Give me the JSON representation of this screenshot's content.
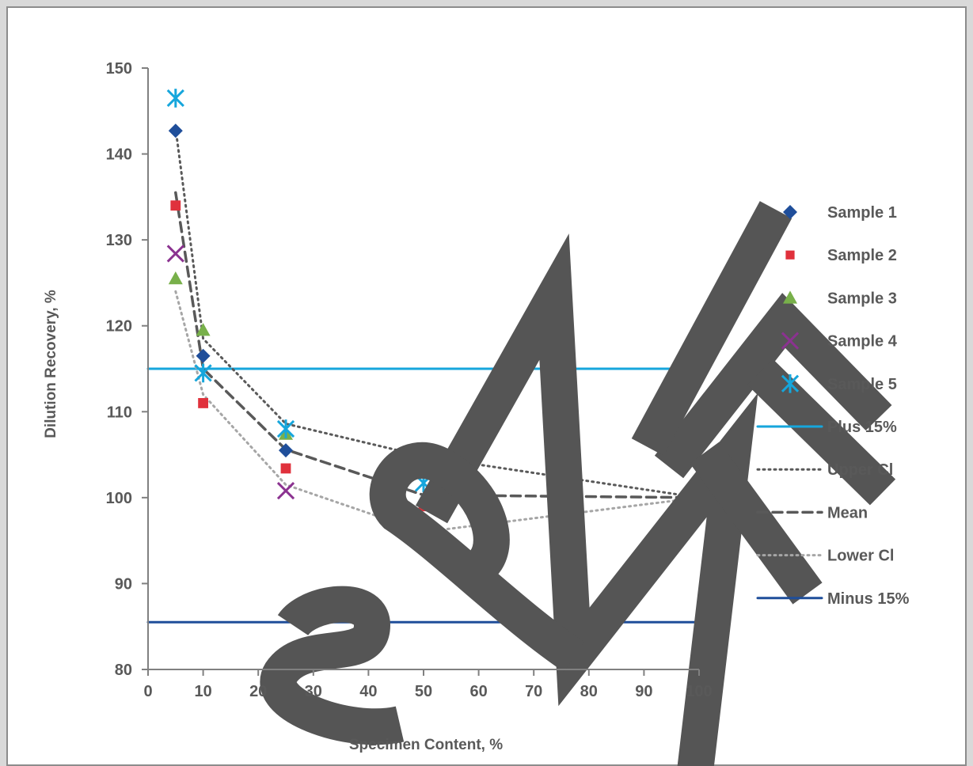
{
  "chart_data": {
    "type": "scatter",
    "xlabel": "Specimen Content, %",
    "ylabel": "Dilution Recovery, %",
    "xlim": [
      0,
      100
    ],
    "ylim": [
      80,
      150
    ],
    "xticks": [
      0,
      10,
      20,
      30,
      40,
      50,
      60,
      70,
      80,
      90,
      100
    ],
    "yticks": [
      80,
      90,
      100,
      110,
      120,
      130,
      140,
      150
    ],
    "grid": false,
    "legend_position": "right",
    "watermark": "SAMPLE",
    "series": [
      {
        "name": "Sample 1",
        "kind": "marker",
        "marker": "diamond",
        "color": "#1f4e9a",
        "x": [
          5,
          10,
          25,
          50,
          100
        ],
        "y": [
          142.7,
          116.5,
          105.5,
          104.4,
          100
        ]
      },
      {
        "name": "Sample 2",
        "kind": "marker",
        "marker": "square",
        "color": "#e0313c",
        "x": [
          5,
          10,
          25,
          50,
          100
        ],
        "y": [
          134,
          111,
          103.4,
          99,
          100
        ]
      },
      {
        "name": "Sample 3",
        "kind": "marker",
        "marker": "triangle",
        "color": "#78b04a",
        "x": [
          5,
          10,
          25,
          50,
          100
        ],
        "y": [
          125.5,
          119.5,
          107.4,
          103.2,
          100
        ]
      },
      {
        "name": "Sample 4",
        "kind": "marker",
        "marker": "x",
        "color": "#8b3290",
        "x": [
          5,
          25,
          50,
          100
        ],
        "y": [
          128.4,
          100.8,
          95.3,
          100
        ]
      },
      {
        "name": "Sample 5",
        "kind": "marker",
        "marker": "star",
        "color": "#16a6dc",
        "x": [
          5,
          10,
          25,
          50,
          100
        ],
        "y": [
          146.5,
          114.5,
          108,
          101.7,
          100
        ]
      },
      {
        "name": "Plus 15%",
        "kind": "line",
        "dash": "solid",
        "color": "#16a6dc",
        "x": [
          0,
          100
        ],
        "y": [
          115,
          115
        ]
      },
      {
        "name": "Upper Cl",
        "kind": "line",
        "dash": "dotted",
        "color": "#595959",
        "x": [
          5,
          10,
          25,
          50,
          100
        ],
        "y": [
          143,
          118.5,
          108.6,
          104.8,
          100
        ]
      },
      {
        "name": "Mean",
        "kind": "line",
        "dash": "dashed",
        "color": "#595959",
        "x": [
          5,
          10,
          25,
          50,
          100
        ],
        "y": [
          135.5,
          115,
          105.6,
          100.3,
          100
        ]
      },
      {
        "name": "Lower Cl",
        "kind": "line",
        "dash": "dotted-light",
        "color": "#a6a6a6",
        "x": [
          5,
          10,
          25,
          50,
          100
        ],
        "y": [
          124,
          112,
          101.5,
          96,
          100
        ]
      },
      {
        "name": "Minus 15%",
        "kind": "line",
        "dash": "solid",
        "color": "#1f4e9a",
        "x": [
          0,
          100
        ],
        "y": [
          85.5,
          85.5
        ]
      }
    ]
  }
}
